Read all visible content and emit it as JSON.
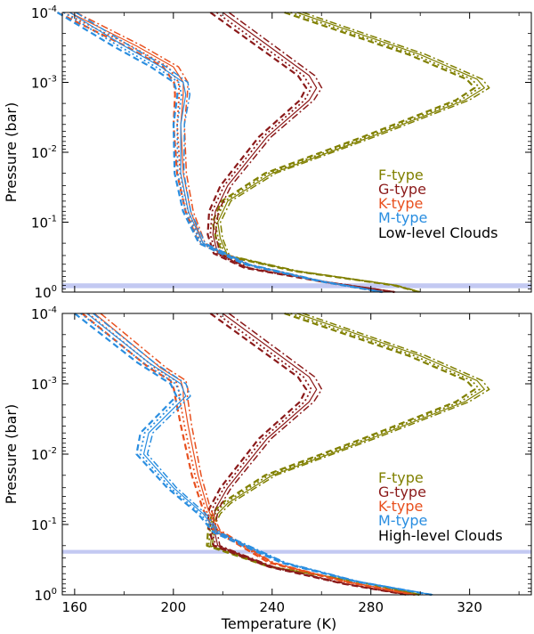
{
  "colors": {
    "F-type": "#808000",
    "G-type": "#8b1a1a",
    "K-type": "#e8501e",
    "M-type": "#2a8ee0",
    "cloud_band": "#b8bff0"
  },
  "chart_data": [
    {
      "type": "line",
      "panel": "top",
      "xlabel": "",
      "ylabel": "Pressure (bar)",
      "xlim": [
        155,
        345
      ],
      "ylim": [
        1,
        0.0001
      ],
      "yscale": "log",
      "y_inverted": true,
      "grid": false,
      "y_ticks": [
        {
          "base": "10",
          "exp": "-4"
        },
        {
          "base": "10",
          "exp": "-3"
        },
        {
          "base": "10",
          "exp": "-2"
        },
        {
          "base": "10",
          "exp": "-1"
        },
        {
          "base": "10",
          "exp": "0"
        }
      ],
      "y_tick_values": [
        0.0001,
        0.001,
        0.01,
        0.1,
        1
      ],
      "x_tick_values": [
        160,
        200,
        240,
        280,
        320
      ],
      "legend_placement": "right",
      "legend": [
        "F-type",
        "G-type",
        "K-type",
        "M-type"
      ],
      "annotation": "Low-level Clouds",
      "cloud_band": {
        "p_top": 0.75,
        "p_bottom": 0.88
      },
      "series": [
        {
          "name": "F-type",
          "x": [
            250,
            300,
            323,
            326,
            318,
            280,
            240,
            222,
            218,
            219,
            222,
            250,
            290,
            300
          ],
          "y": [
            0.0001,
            0.0004,
            0.0009,
            0.0012,
            0.0018,
            0.006,
            0.02,
            0.05,
            0.1,
            0.17,
            0.3,
            0.5,
            0.8,
            1.0
          ]
        },
        {
          "name": "G-type",
          "x": [
            220,
            255,
            258,
            255,
            238,
            222,
            217,
            216,
            218,
            230,
            260,
            290
          ],
          "y": [
            0.0001,
            0.0008,
            0.0012,
            0.0018,
            0.006,
            0.03,
            0.07,
            0.15,
            0.28,
            0.45,
            0.7,
            1.0
          ]
        },
        {
          "name": "K-type",
          "x": [
            158,
            185,
            200,
            204,
            204,
            203,
            204,
            207,
            212,
            230,
            260,
            285
          ],
          "y": [
            0.0001,
            0.0003,
            0.0006,
            0.001,
            0.0015,
            0.004,
            0.02,
            0.07,
            0.2,
            0.4,
            0.7,
            1.0
          ]
        },
        {
          "name": "M-type",
          "x": [
            158,
            180,
            195,
            204,
            205,
            203,
            203,
            206,
            212,
            230,
            260,
            285
          ],
          "y": [
            0.0001,
            0.0003,
            0.0006,
            0.001,
            0.0015,
            0.004,
            0.02,
            0.07,
            0.2,
            0.4,
            0.7,
            1.0
          ]
        }
      ]
    },
    {
      "type": "line",
      "panel": "bottom",
      "xlabel": "Temperature (K)",
      "ylabel": "Pressure (bar)",
      "xlim": [
        155,
        345
      ],
      "ylim": [
        1,
        0.0001
      ],
      "yscale": "log",
      "y_inverted": true,
      "grid": false,
      "y_ticks": [
        {
          "base": "10",
          "exp": "-4"
        },
        {
          "base": "10",
          "exp": "-3"
        },
        {
          "base": "10",
          "exp": "-2"
        },
        {
          "base": "10",
          "exp": "-1"
        },
        {
          "base": "10",
          "exp": "0"
        }
      ],
      "y_tick_values": [
        0.0001,
        0.001,
        0.01,
        0.1,
        1
      ],
      "x_ticks": [
        "160",
        "200",
        "240",
        "280",
        "320"
      ],
      "x_tick_values": [
        160,
        200,
        240,
        280,
        320
      ],
      "legend_placement": "right",
      "legend": [
        "F-type",
        "G-type",
        "K-type",
        "M-type"
      ],
      "annotation": "High-level Clouds",
      "cloud_band": {
        "p_top": 0.23,
        "p_bottom": 0.26
      },
      "series": [
        {
          "name": "F-type",
          "x": [
            250,
            300,
            323,
            326,
            318,
            280,
            240,
            222,
            218,
            216,
            215,
            240,
            280,
            300
          ],
          "y": [
            0.0001,
            0.0004,
            0.0009,
            0.0012,
            0.0018,
            0.006,
            0.02,
            0.05,
            0.07,
            0.1,
            0.2,
            0.4,
            0.7,
            1.0
          ]
        },
        {
          "name": "G-type",
          "x": [
            220,
            255,
            258,
            255,
            238,
            222,
            217,
            216,
            218,
            240,
            270,
            295
          ],
          "y": [
            0.0001,
            0.0008,
            0.0012,
            0.0018,
            0.006,
            0.03,
            0.06,
            0.1,
            0.2,
            0.4,
            0.7,
            1.0
          ]
        },
        {
          "name": "K-type",
          "x": [
            168,
            195,
            203,
            204,
            204,
            206,
            210,
            214,
            218,
            240,
            270,
            298
          ],
          "y": [
            0.0001,
            0.0006,
            0.0009,
            0.0012,
            0.0015,
            0.004,
            0.02,
            0.06,
            0.12,
            0.35,
            0.65,
            1.0
          ]
        },
        {
          "name": "M-type",
          "x": [
            165,
            190,
            203,
            205,
            190,
            188,
            200,
            212,
            218,
            245,
            275,
            305
          ],
          "y": [
            0.0001,
            0.0005,
            0.001,
            0.0015,
            0.005,
            0.01,
            0.03,
            0.07,
            0.13,
            0.35,
            0.65,
            1.0
          ]
        }
      ]
    }
  ]
}
